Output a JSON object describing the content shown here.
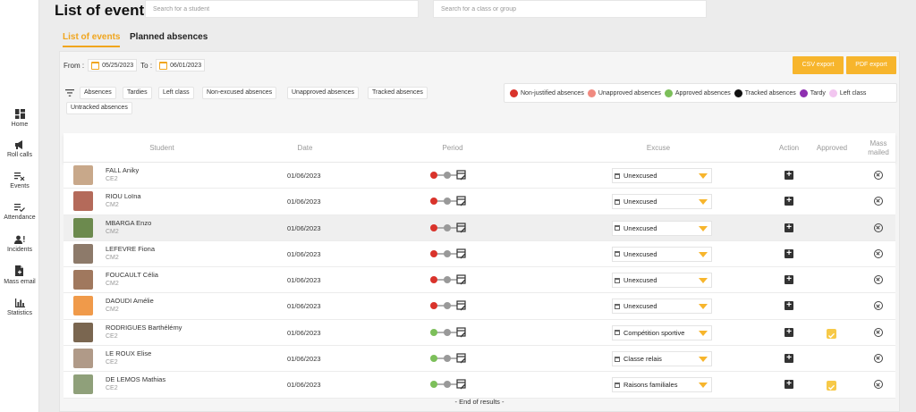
{
  "sidebar": {
    "items": [
      {
        "label": "Home",
        "icon": "dashboard-icon"
      },
      {
        "label": "Roll calls",
        "icon": "megaphone-icon"
      },
      {
        "label": "Events",
        "icon": "list-remove-icon"
      },
      {
        "label": "Attendance",
        "icon": "list-check-icon"
      },
      {
        "label": "Incidents",
        "icon": "person-alert-icon"
      },
      {
        "label": "Mass email",
        "icon": "document-add-icon"
      },
      {
        "label": "Statistics",
        "icon": "bar-chart-icon"
      }
    ]
  },
  "header": {
    "title": "List of events",
    "student_search_placeholder": "Search for a student",
    "class_search_placeholder": "Search for a class or group"
  },
  "tabs": [
    {
      "label": "List of events",
      "active": true
    },
    {
      "label": "Planned absences",
      "active": false
    }
  ],
  "dates": {
    "from_label": "From :",
    "from_value": "05/25/2023",
    "to_label": "To :",
    "to_value": "06/01/2023"
  },
  "exports": {
    "csv_label": "CSV export",
    "pdf_label": "PDF export"
  },
  "filters": [
    "Absences",
    "Tardies",
    "Left class",
    "Non-excused absences",
    "Unapproved absences",
    "Tracked absences",
    "Untracked absences"
  ],
  "legend": [
    {
      "label": "Non-justified absences",
      "color": "#d9332b"
    },
    {
      "label": "Unapproved absences",
      "color": "#f08a80"
    },
    {
      "label": "Approved absences",
      "color": "#7cbf5a"
    },
    {
      "label": "Tracked absences",
      "color": "#111111"
    },
    {
      "label": "Tardy",
      "color": "#8e2fb0"
    },
    {
      "label": "Left class",
      "color": "#f2c6f0"
    }
  ],
  "table": {
    "columns": {
      "student": "Student",
      "date": "Date",
      "period": "Period",
      "excuse": "Excuse",
      "action": "Action",
      "approved": "Approved",
      "mass_mailed": "Mass mailed"
    },
    "rows": [
      {
        "name": "FALL Aniky",
        "class": "CE2",
        "date": "01/06/2023",
        "status_color": "#d9332b",
        "excuse": "Unexcused",
        "approved": false,
        "photo_color": "#c8a88a"
      },
      {
        "name": "RIOU Loïna",
        "class": "CM2",
        "date": "01/06/2023",
        "status_color": "#d9332b",
        "excuse": "Unexcused",
        "approved": false,
        "photo_color": "#b46a5a"
      },
      {
        "name": "MBARGA Enzo",
        "class": "CM2",
        "date": "01/06/2023",
        "status_color": "#d9332b",
        "excuse": "Unexcused",
        "approved": false,
        "photo_color": "#6c8a4e"
      },
      {
        "name": "LEFEVRE Fiona",
        "class": "CM2",
        "date": "01/06/2023",
        "status_color": "#d9332b",
        "excuse": "Unexcused",
        "approved": false,
        "photo_color": "#8d7a6a"
      },
      {
        "name": "FOUCAULT Célia",
        "class": "CM2",
        "date": "01/06/2023",
        "status_color": "#d9332b",
        "excuse": "Unexcused",
        "approved": false,
        "photo_color": "#a0785e"
      },
      {
        "name": "DAOUDI Amélie",
        "class": "CM2",
        "date": "01/06/2023",
        "status_color": "#d9332b",
        "excuse": "Unexcused",
        "approved": false,
        "photo_color": "#f09a4a"
      },
      {
        "name": "RODRIGUES Barthélémy",
        "class": "CE2",
        "date": "01/06/2023",
        "status_color": "#7cbf5a",
        "excuse": "Compétition sportive",
        "approved": true,
        "photo_color": "#7a6650"
      },
      {
        "name": "LE ROUX Elise",
        "class": "CE2",
        "date": "01/06/2023",
        "status_color": "#7cbf5a",
        "excuse": "Classe relais",
        "approved": false,
        "photo_color": "#b09a88"
      },
      {
        "name": "DE LEMOS Mathias",
        "class": "CE2",
        "date": "01/06/2023",
        "status_color": "#7cbf5a",
        "excuse": "Raisons familiales",
        "approved": true,
        "photo_color": "#8fa07a"
      }
    ],
    "highlighted_row": 2
  },
  "footer": {
    "end_text": "- End of results -"
  },
  "colors": {
    "accent": "#f7b52c",
    "accent_text": "#f0a51d"
  }
}
